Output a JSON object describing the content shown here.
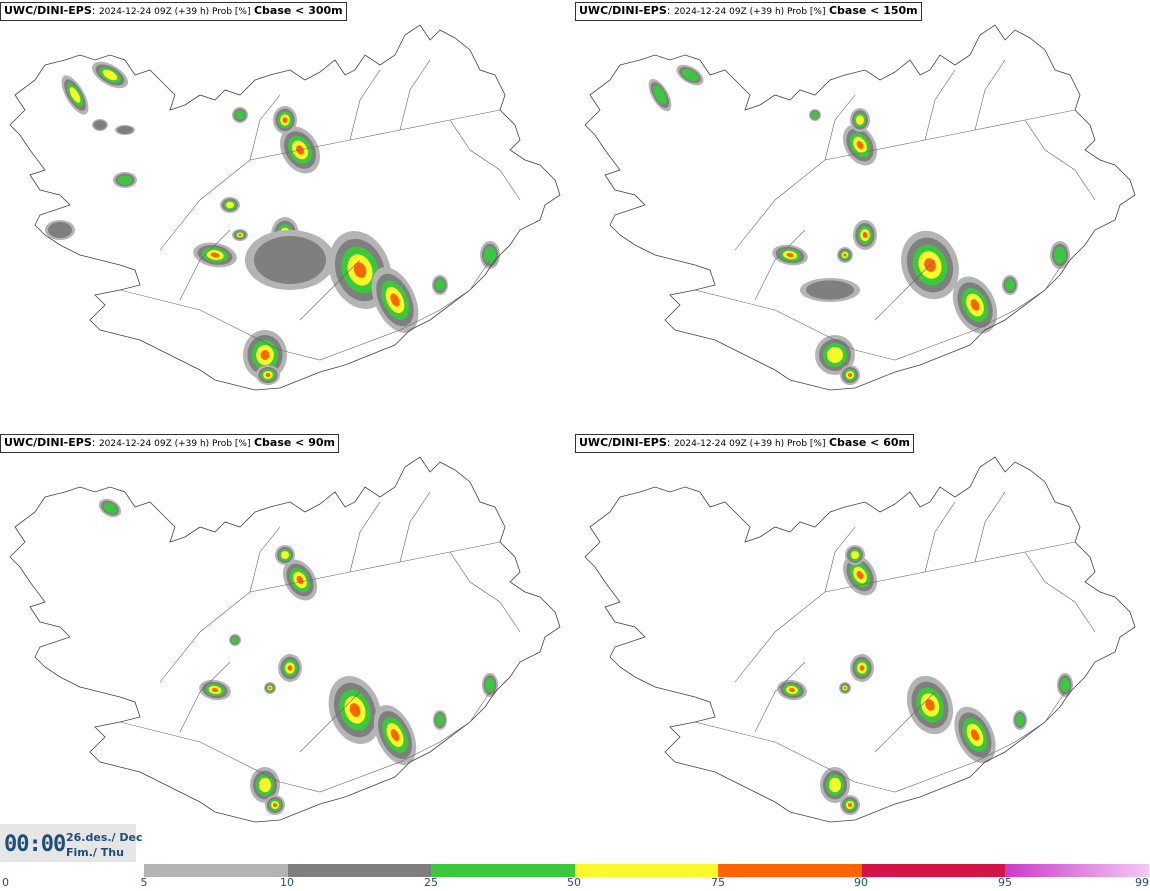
{
  "panels": [
    {
      "source": "UWC/DINI-EPS",
      "meta": "2024-12-24 09Z (+39 h) Prob [%]",
      "variable": "Cbase < 300m"
    },
    {
      "source": "UWC/DINI-EPS",
      "meta": "2024-12-24 09Z (+39 h) Prob [%]",
      "variable": "Cbase < 150m"
    },
    {
      "source": "UWC/DINI-EPS",
      "meta": "2024-12-24 09Z (+39 h) Prob [%]",
      "variable": "Cbase < 90m"
    },
    {
      "source": "UWC/DINI-EPS",
      "meta": "2024-12-24 09Z (+39 h) Prob [%]",
      "variable": "Cbase < 60m"
    }
  ],
  "valid_time": {
    "time": "00:00",
    "date_line1": "26.des./ Dec",
    "date_line2": "Fim./ Thu"
  },
  "colorbar": {
    "ticks": [
      "0",
      "5",
      "10",
      "25",
      "50",
      "75",
      "90",
      "95",
      "99"
    ],
    "bins": [
      {
        "from": "5",
        "to": "10",
        "color": "#b4b4b4"
      },
      {
        "from": "10",
        "to": "25",
        "color": "#7f7f7f"
      },
      {
        "from": "25",
        "to": "50",
        "color": "#3cc83c"
      },
      {
        "from": "50",
        "to": "75",
        "color": "#fafa28"
      },
      {
        "from": "75",
        "to": "90",
        "color": "#ff6400"
      },
      {
        "from": "90",
        "to": "95",
        "color": "#d21446"
      },
      {
        "from": "95",
        "to": "99",
        "color": "#c83cc8"
      }
    ]
  }
}
